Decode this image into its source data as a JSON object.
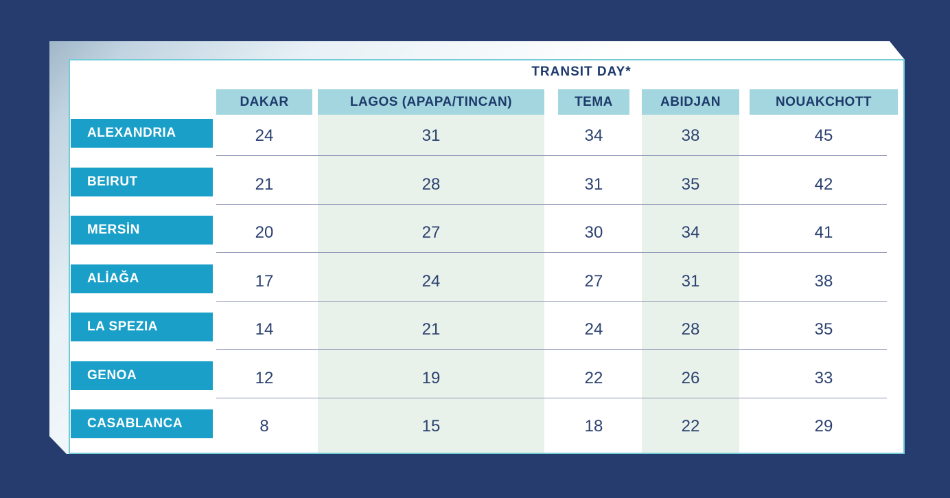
{
  "colors": {
    "page_background": "#273c6e",
    "row_header_cyan": "#1a9fc8",
    "column_header_teal": "#a3d6de",
    "highlight_band_mint": "#e9f2ea",
    "card_border_teal": "#74cbd8",
    "divider_gray": "#8d96b5",
    "heading_navy": "#1d3a6b",
    "value_navy": "#2c4270"
  },
  "chart_data": {
    "type": "table",
    "title": "TRANSIT DAY*",
    "columns": [
      "DAKAR",
      "LAGOS (APAPA/TINCAN)",
      "TEMA",
      "ABIDJAN",
      "NOUAKCHOTT"
    ],
    "rows": [
      "ALEXANDRIA",
      "BEIRUT",
      "MERSİN",
      "ALİAĞA",
      "LA SPEZIA",
      "GENOA",
      "CASABLANCA"
    ],
    "values": [
      [
        24,
        31,
        34,
        38,
        45
      ],
      [
        21,
        28,
        31,
        35,
        42
      ],
      [
        20,
        27,
        30,
        34,
        41
      ],
      [
        17,
        24,
        27,
        31,
        38
      ],
      [
        14,
        21,
        24,
        28,
        35
      ],
      [
        12,
        19,
        22,
        26,
        33
      ],
      [
        8,
        15,
        18,
        22,
        29
      ]
    ],
    "highlighted_columns": [
      "LAGOS (APAPA/TINCAN)",
      "ABIDJAN"
    ]
  }
}
